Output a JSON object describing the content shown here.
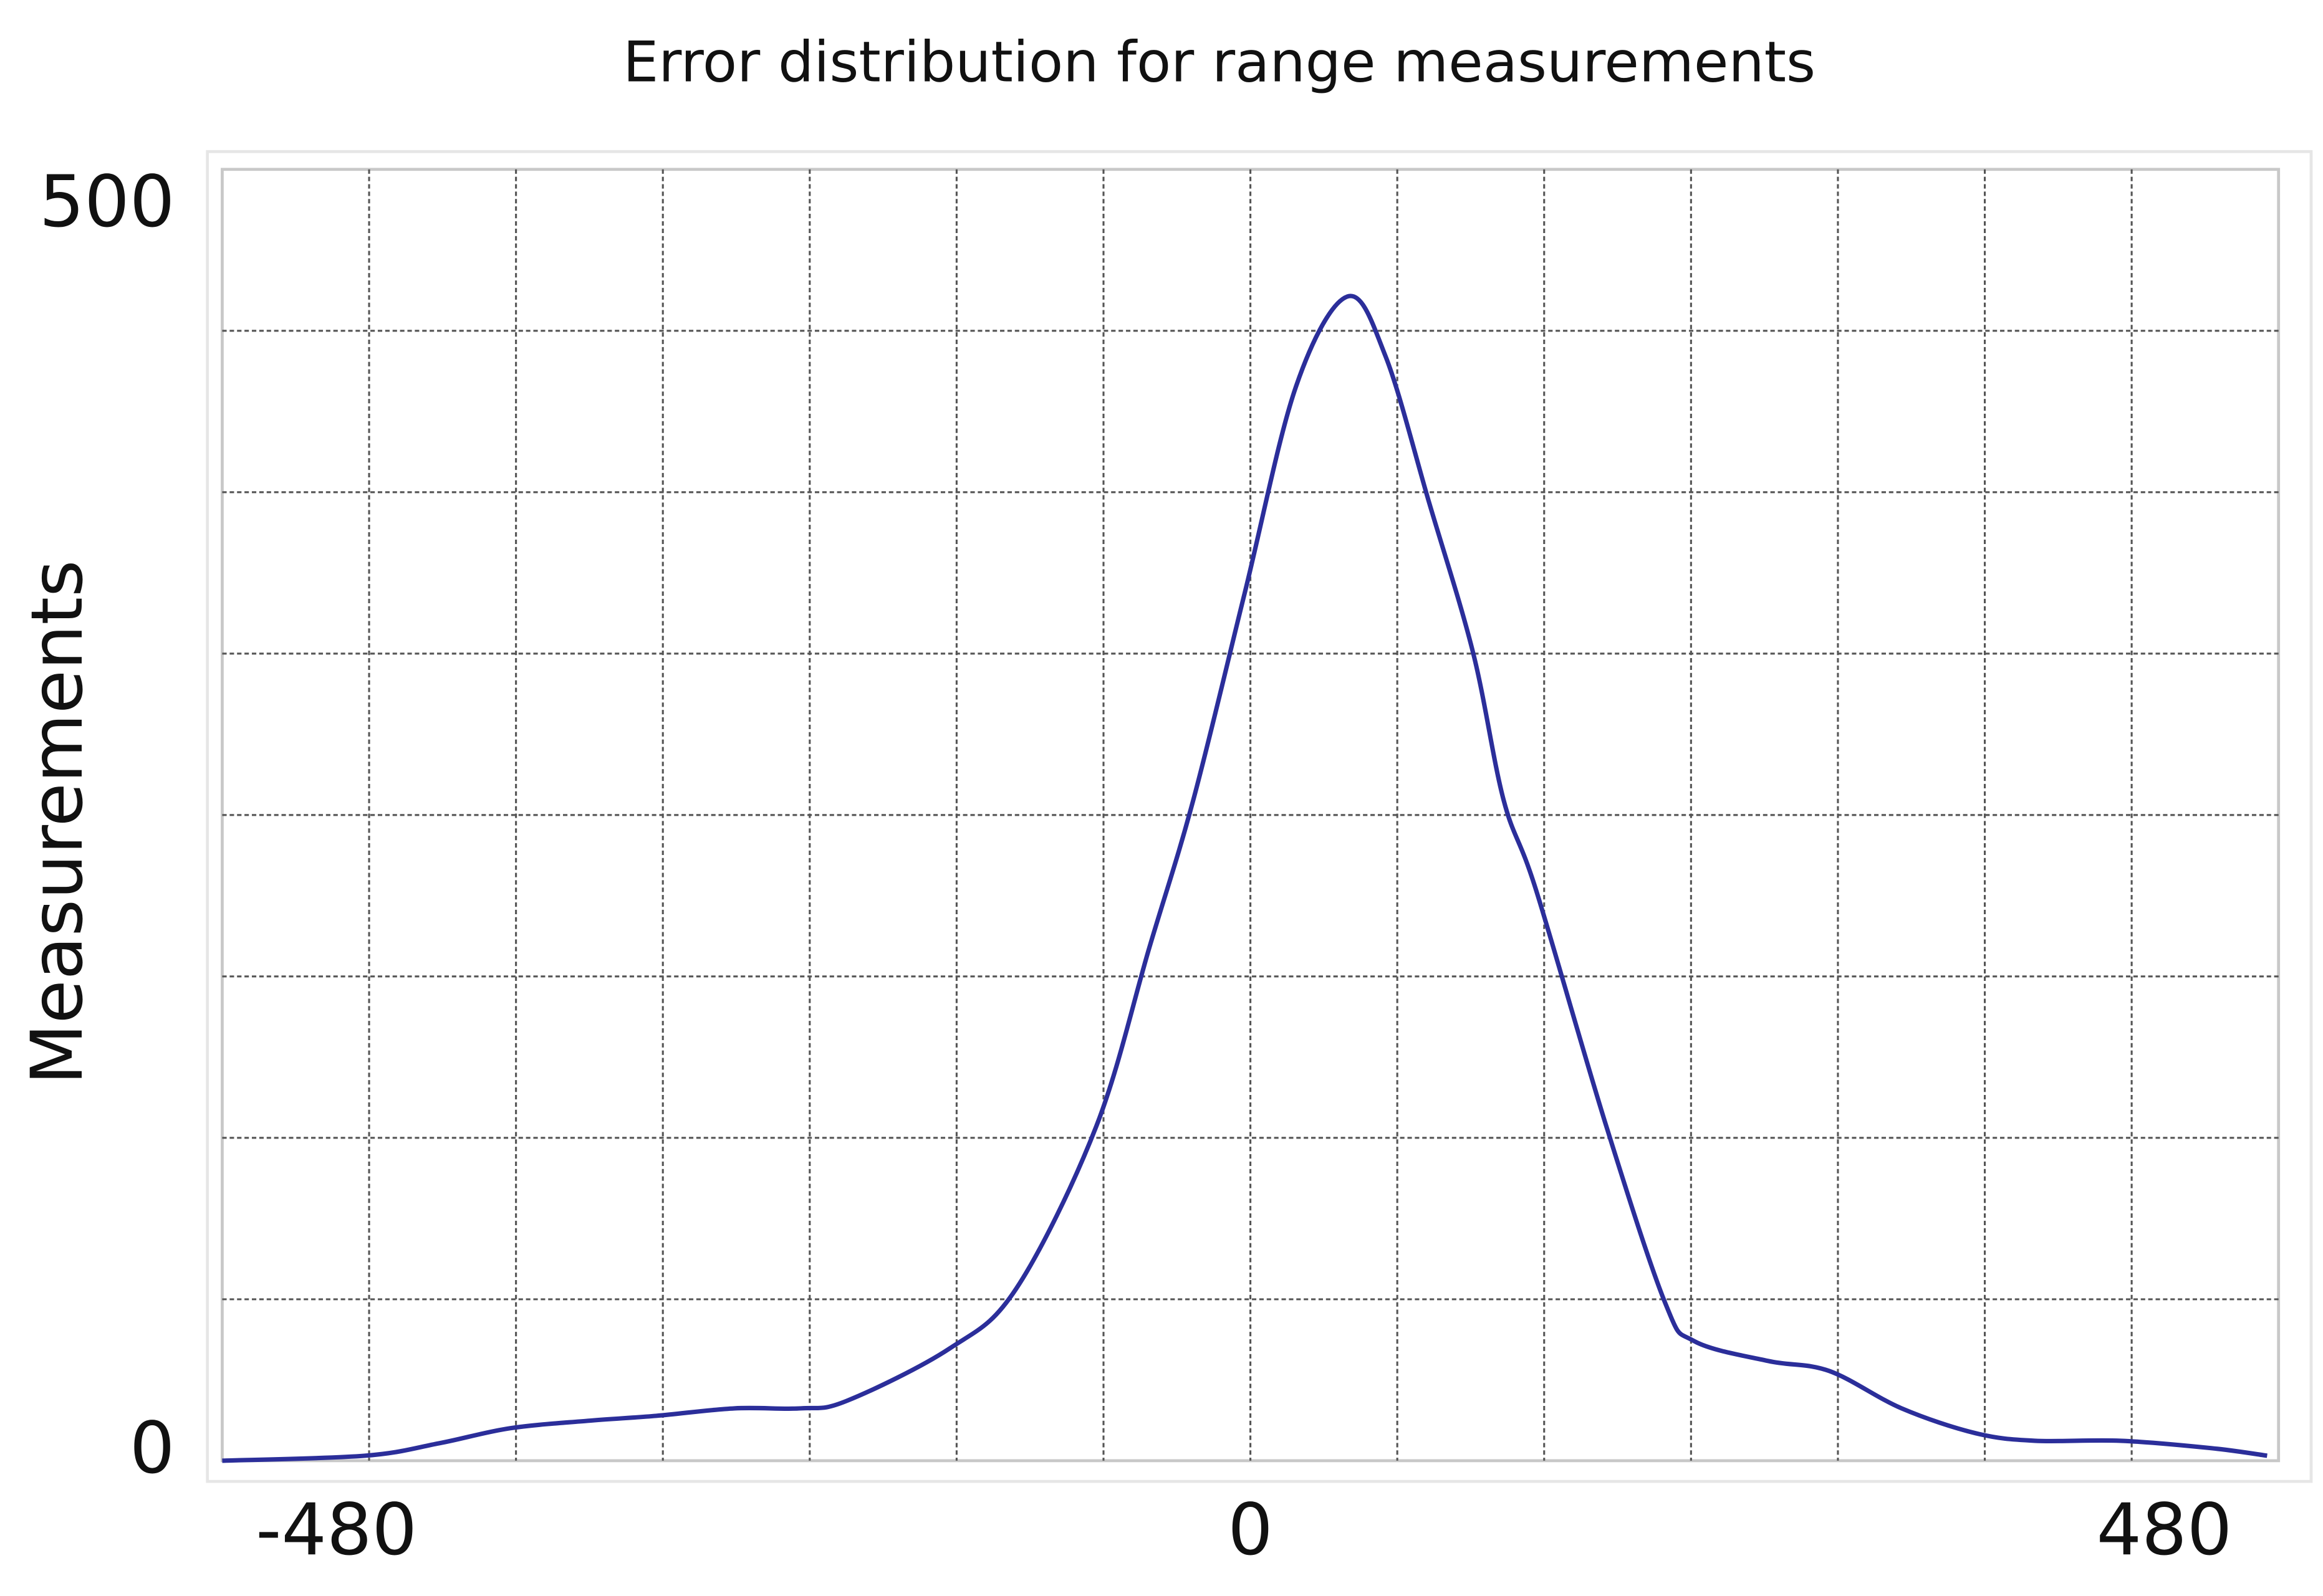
{
  "chart_data": {
    "type": "line",
    "title": "Error distribution for range measurements",
    "y_label": "Measurements",
    "x": [
      -540,
      -465,
      -426,
      -389,
      -348,
      -312,
      -271,
      -236,
      -212,
      -158,
      -123,
      -81,
      -53,
      -30,
      -3,
      24,
      51,
      71,
      94,
      117,
      133,
      150,
      187,
      218,
      233,
      272,
      304,
      342,
      381,
      412,
      457,
      505,
      534
    ],
    "series": [
      {
        "color": "#2b2e9a",
        "values": [
          -3,
          -1,
          4,
          10,
          13,
          15,
          18,
          18,
          21,
          42,
          66,
          131,
          203,
          262,
          345,
          428,
          464,
          440,
          381,
          321,
          262,
          226,
          131,
          60,
          45,
          37,
          33,
          18,
          8,
          5,
          5,
          2,
          -1
        ]
      }
    ],
    "xlim": [
      -540,
      540
    ],
    "xticks": [
      -480,
      0,
      480
    ],
    "ylim": [
      -3,
      515
    ],
    "yticks": [
      0,
      500
    ],
    "grid": true
  }
}
